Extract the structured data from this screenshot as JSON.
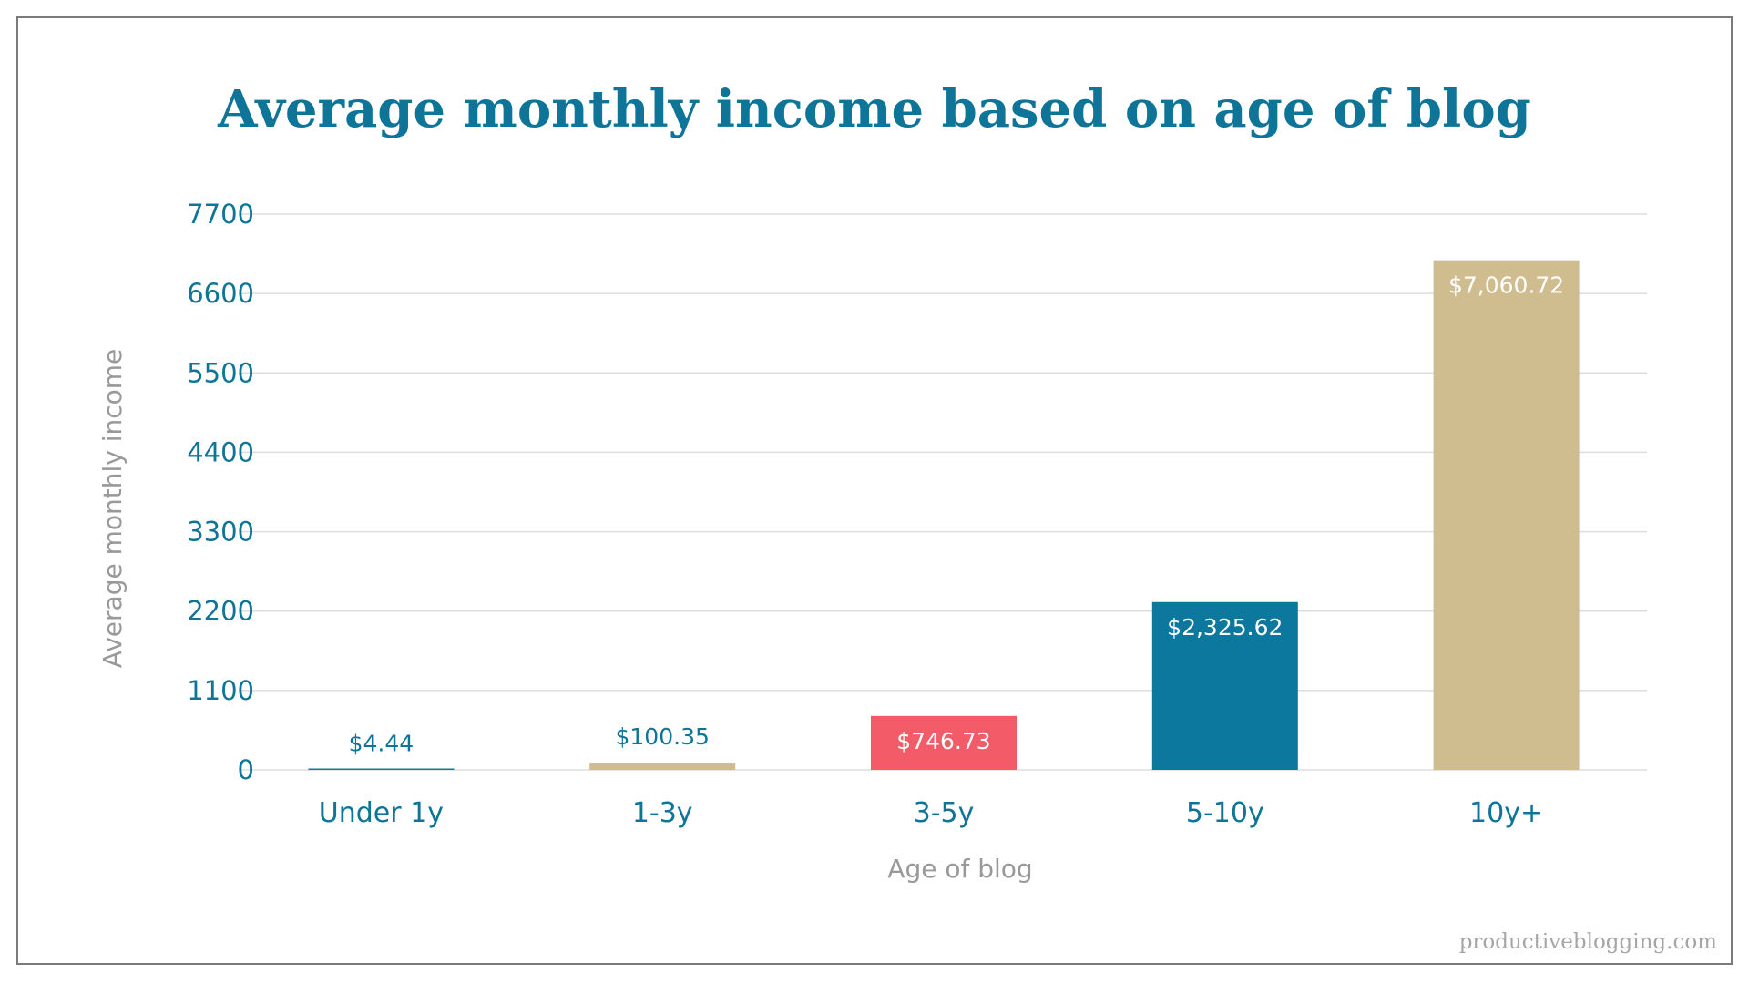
{
  "chart_data": {
    "type": "bar",
    "title": "Average monthly income based on age of blog",
    "xlabel": "Age of blog",
    "ylabel": "Average monthly income",
    "categories": [
      "Under 1y",
      "1-3y",
      "3-5y",
      "5-10y",
      "10y+"
    ],
    "values": [
      4.44,
      100.35,
      746.73,
      2325.62,
      7060.72
    ],
    "value_labels": [
      "$4.44",
      "$100.35",
      "$746.73",
      "$2,325.62",
      "$7,060.72"
    ],
    "bar_colors": [
      "#0d789e",
      "#cfbd8f",
      "#f45b69",
      "#0d789e",
      "#cfbd8f"
    ],
    "ylim": [
      0,
      7700
    ],
    "yticks": [
      0,
      1100,
      2200,
      3300,
      4400,
      5500,
      6600,
      7700
    ],
    "grid": true,
    "legend": "none"
  },
  "watermark": "productiveblogging.com",
  "colors": {
    "accent": "#0e7598",
    "muted": "#999999",
    "grid": "#dddddd"
  }
}
